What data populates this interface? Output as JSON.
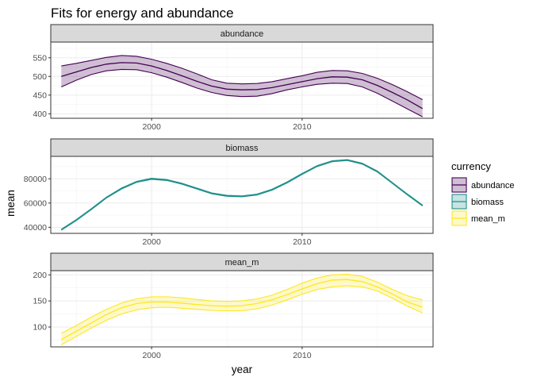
{
  "chart_data": {
    "type": "line",
    "title": "Fits for energy and abundance",
    "xlabel": "year",
    "ylabel": "mean",
    "xlim": [
      1993.3,
      2018.7
    ],
    "x_ticks": [
      2000,
      2010
    ],
    "x_tick_labels": [
      "2000",
      "2010"
    ],
    "legend": {
      "title": "currency",
      "position": "right",
      "entries": [
        "abundance",
        "biomass",
        "mean_m"
      ]
    },
    "colors": {
      "abundance": "#440154",
      "biomass": "#21908c",
      "mean_m": "#fde725"
    },
    "x": [
      1994,
      1995,
      1996,
      1997,
      1998,
      1999,
      2000,
      2001,
      2002,
      2003,
      2004,
      2005,
      2006,
      2007,
      2008,
      2009,
      2010,
      2011,
      2012,
      2013,
      2014,
      2015,
      2016,
      2017,
      2018
    ],
    "panels": [
      {
        "strip": "abundance",
        "series": "abundance",
        "ylim": [
          388,
          592
        ],
        "y_ticks": [
          400,
          450,
          500,
          550
        ],
        "y_tick_labels": [
          "400",
          "450",
          "500",
          "550"
        ],
        "mean": [
          500,
          512,
          524,
          533,
          537,
          536,
          528,
          516,
          502,
          487,
          474,
          466,
          464,
          465,
          470,
          478,
          486,
          494,
          499,
          498,
          491,
          476,
          457,
          437,
          414
        ],
        "lower": [
          472,
          490,
          505,
          515,
          519,
          518,
          510,
          498,
          484,
          469,
          457,
          449,
          446,
          447,
          454,
          464,
          472,
          479,
          482,
          481,
          472,
          455,
          434,
          413,
          392
        ],
        "upper": [
          528,
          535,
          543,
          551,
          556,
          554,
          546,
          535,
          522,
          507,
          491,
          482,
          480,
          481,
          486,
          494,
          502,
          511,
          516,
          515,
          508,
          495,
          478,
          459,
          438
        ]
      },
      {
        "strip": "biomass",
        "series": "biomass",
        "ylim": [
          35000,
          98500
        ],
        "y_ticks": [
          40000,
          60000,
          80000
        ],
        "y_tick_labels": [
          "40000",
          "60000",
          "80000"
        ],
        "mean": [
          38000,
          46000,
          55000,
          64500,
          72000,
          77500,
          80000,
          79000,
          76000,
          72000,
          68000,
          66000,
          65500,
          67000,
          71000,
          77000,
          84000,
          90500,
          94500,
          95500,
          92500,
          86000,
          76500,
          67000,
          58000
        ],
        "lower": [
          37600,
          45600,
          54600,
          64100,
          71600,
          77100,
          79600,
          78600,
          75600,
          71600,
          67600,
          65600,
          65100,
          66600,
          70600,
          76600,
          83600,
          90100,
          94100,
          95100,
          92100,
          85600,
          76100,
          66600,
          57600
        ],
        "upper": [
          38400,
          46400,
          55400,
          64900,
          72400,
          77900,
          80400,
          79400,
          76400,
          72400,
          68400,
          66400,
          65900,
          67400,
          71400,
          77400,
          84400,
          90900,
          94900,
          95900,
          92900,
          86400,
          76900,
          67400,
          58400
        ]
      },
      {
        "strip": "mean_m",
        "series": "mean_m",
        "ylim": [
          62,
          208
        ],
        "y_ticks": [
          100,
          150,
          200
        ],
        "y_tick_labels": [
          "100",
          "150",
          "200"
        ],
        "mean": [
          76,
          92,
          108,
          124,
          137,
          145,
          148,
          148,
          146,
          143,
          141,
          140,
          141,
          145,
          152,
          162,
          173,
          183,
          190,
          191,
          187,
          177,
          163,
          148,
          138
        ],
        "lower": [
          66,
          82,
          98,
          113,
          125,
          133,
          137,
          138,
          136,
          134,
          132,
          131,
          131,
          135,
          142,
          152,
          163,
          172,
          177,
          179,
          177,
          169,
          155,
          140,
          127
        ],
        "upper": [
          88,
          103,
          119,
          134,
          146,
          154,
          158,
          158,
          156,
          153,
          150,
          149,
          150,
          154,
          161,
          172,
          184,
          194,
          200,
          201,
          197,
          186,
          172,
          160,
          152
        ]
      }
    ]
  }
}
